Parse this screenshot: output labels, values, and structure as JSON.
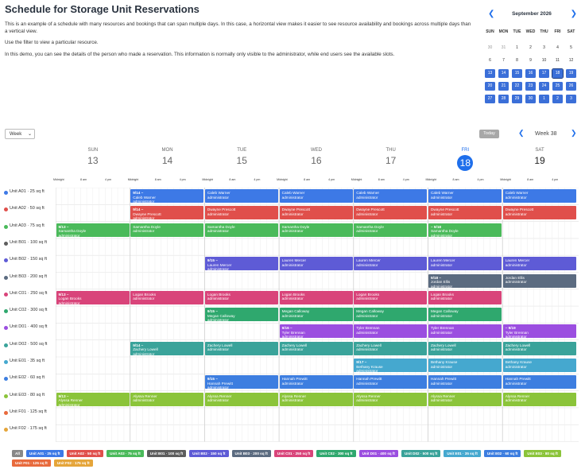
{
  "page": {
    "title": "Schedule for Storage Unit Reservations",
    "desc1": "This is an example of a schedule with many resources and bookings that can span multiple days. In this case, a horizontal view makes it easier to see resource availability and bookings across multiple days than a vertical view.",
    "desc2": "Use the filter to view a particular resource.",
    "desc3": "In this demo, you can see the details of the person who made a reservation. This information is normally only visible to the administrator, while end users see the available slots."
  },
  "mini_calendar": {
    "title": "September 2026",
    "dow": [
      "SUN",
      "MON",
      "TUE",
      "WED",
      "THU",
      "FRI",
      "SAT"
    ],
    "weeks": [
      [
        {
          "d": "30",
          "t": "other"
        },
        {
          "d": "31",
          "t": "other"
        },
        {
          "d": "1",
          "t": ""
        },
        {
          "d": "2",
          "t": ""
        },
        {
          "d": "3",
          "t": ""
        },
        {
          "d": "4",
          "t": ""
        },
        {
          "d": "5",
          "t": ""
        }
      ],
      [
        {
          "d": "6",
          "t": ""
        },
        {
          "d": "7",
          "t": ""
        },
        {
          "d": "8",
          "t": ""
        },
        {
          "d": "9",
          "t": ""
        },
        {
          "d": "10",
          "t": ""
        },
        {
          "d": "11",
          "t": ""
        },
        {
          "d": "12",
          "t": ""
        }
      ],
      [
        {
          "d": "13",
          "t": "sel"
        },
        {
          "d": "14",
          "t": "sel"
        },
        {
          "d": "15",
          "t": "sel"
        },
        {
          "d": "16",
          "t": "sel"
        },
        {
          "d": "17",
          "t": "sel"
        },
        {
          "d": "18",
          "t": "sel today"
        },
        {
          "d": "19",
          "t": "sel"
        }
      ],
      [
        {
          "d": "20",
          "t": "sel"
        },
        {
          "d": "21",
          "t": "sel"
        },
        {
          "d": "22",
          "t": "sel"
        },
        {
          "d": "23",
          "t": "sel"
        },
        {
          "d": "24",
          "t": "sel"
        },
        {
          "d": "25",
          "t": "sel"
        },
        {
          "d": "26",
          "t": "sel"
        }
      ],
      [
        {
          "d": "27",
          "t": "sel"
        },
        {
          "d": "28",
          "t": "sel"
        },
        {
          "d": "29",
          "t": "sel"
        },
        {
          "d": "30",
          "t": "sel"
        },
        {
          "d": "1",
          "t": "sel"
        },
        {
          "d": "2",
          "t": "sel"
        },
        {
          "d": "3",
          "t": "sel"
        }
      ]
    ]
  },
  "toolbar": {
    "view": "Week",
    "today": "Today",
    "week_label": "Week 38"
  },
  "days": [
    {
      "name": "SUN",
      "num": "13"
    },
    {
      "name": "MON",
      "num": "14"
    },
    {
      "name": "TUE",
      "num": "15"
    },
    {
      "name": "WED",
      "num": "16"
    },
    {
      "name": "THU",
      "num": "17"
    },
    {
      "name": "FRI",
      "num": "18"
    },
    {
      "name": "SAT",
      "num": "19"
    }
  ],
  "hour_labels": [
    "Midnight",
    "8 am",
    "4 pm"
  ],
  "resources": [
    {
      "name": "Unit A01 · 25 sq ft",
      "color": "#3d79e6"
    },
    {
      "name": "Unit A02 · 50 sq ft",
      "color": "#e04f4b"
    },
    {
      "name": "Unit A03 · 75 sq ft",
      "color": "#4aba5a"
    },
    {
      "name": "Unit B01 · 100 sq ft",
      "color": "#5d5d5d"
    },
    {
      "name": "Unit B02 · 150 sq ft",
      "color": "#5e5bd6"
    },
    {
      "name": "Unit B03 · 200 sq ft",
      "color": "#5b6b80"
    },
    {
      "name": "Unit C01 · 250 sq ft",
      "color": "#d9447a"
    },
    {
      "name": "Unit C02 · 300 sq ft",
      "color": "#2fa86e"
    },
    {
      "name": "Unit D01 · 400 sq ft",
      "color": "#9b4ee0"
    },
    {
      "name": "Unit D02 · 500 sq ft",
      "color": "#3aa39a"
    },
    {
      "name": "Unit E01 · 35 sq ft",
      "color": "#45a8cf"
    },
    {
      "name": "Unit E02 · 60 sq ft",
      "color": "#3d7ee0"
    },
    {
      "name": "Unit E03 · 80 sq ft",
      "color": "#8bc43a"
    },
    {
      "name": "Unit F01 · 125 sq ft",
      "color": "#e86a3c"
    },
    {
      "name": "Unit F02 · 175 sq ft",
      "color": "#e5a53a"
    }
  ],
  "reservations": [
    {
      "row": 0,
      "start": 1.0,
      "end": 7.0,
      "segments": [
        {
          "title": "9/14 –",
          "name": "Caleb Warner",
          "role": "administrator"
        },
        {
          "title": "",
          "name": "Caleb Warner",
          "role": "administrator"
        },
        {
          "title": "",
          "name": "Caleb Warner",
          "role": "administrator"
        },
        {
          "title": "",
          "name": "Caleb Warner",
          "role": "administrator"
        },
        {
          "title": "",
          "name": "Caleb Warner",
          "role": "administrator"
        },
        {
          "title": "",
          "name": "Caleb Warner",
          "role": "administrator"
        }
      ]
    },
    {
      "row": 1,
      "start": 1.0,
      "end": 7.0,
      "segments": [
        {
          "title": "9/14 –",
          "name": "Dwayne Prescott",
          "role": "administrator"
        },
        {
          "title": "",
          "name": "Dwayne Prescott",
          "role": "administrator"
        },
        {
          "title": "",
          "name": "Dwayne Prescott",
          "role": "administrator"
        },
        {
          "title": "",
          "name": "Dwayne Prescott",
          "role": "administrator"
        },
        {
          "title": "",
          "name": "Dwayne Prescott",
          "role": "administrator"
        },
        {
          "title": "",
          "name": "Dwayne Prescott",
          "role": "administrator"
        }
      ]
    },
    {
      "row": 2,
      "start": 0.0,
      "end": 6.0,
      "segments": [
        {
          "title": "9/13 –",
          "name": "Samantha Doyle",
          "role": "administrator"
        },
        {
          "title": "",
          "name": "Samantha Doyle",
          "role": "administrator"
        },
        {
          "title": "",
          "name": "Samantha Doyle",
          "role": "administrator"
        },
        {
          "title": "",
          "name": "Samantha Doyle",
          "role": "administrator"
        },
        {
          "title": "",
          "name": "Samantha Doyle",
          "role": "administrator"
        },
        {
          "title": "– 9/18",
          "name": "Samantha Doyle",
          "role": "administrator"
        }
      ]
    },
    {
      "row": 4,
      "start": 2.0,
      "end": 7.0,
      "segments": [
        {
          "title": "9/15 –",
          "name": "Lauren Mercer",
          "role": "administrator"
        },
        {
          "title": "",
          "name": "Lauren Mercer",
          "role": "administrator"
        },
        {
          "title": "",
          "name": "Lauren Mercer",
          "role": "administrator"
        },
        {
          "title": "",
          "name": "Lauren Mercer",
          "role": "administrator"
        },
        {
          "title": "",
          "name": "Lauren Mercer",
          "role": "administrator"
        }
      ]
    },
    {
      "row": 5,
      "start": 5.0,
      "end": 7.0,
      "segments": [
        {
          "title": "9/18 –",
          "name": "Jordan Ellis",
          "role": "administrator"
        },
        {
          "title": "",
          "name": "Jordan Ellis",
          "role": "administrator"
        }
      ]
    },
    {
      "row": 6,
      "start": 0.0,
      "end": 6.0,
      "segments": [
        {
          "title": "9/13 –",
          "name": "Logan Brooks",
          "role": "administrator"
        },
        {
          "title": "",
          "name": "Logan Brooks",
          "role": "administrator"
        },
        {
          "title": "",
          "name": "Logan Brooks",
          "role": "administrator"
        },
        {
          "title": "",
          "name": "Logan Brooks",
          "role": "administrator"
        },
        {
          "title": "",
          "name": "Logan Brooks",
          "role": "administrator"
        },
        {
          "title": "",
          "name": "Logan Brooks",
          "role": "administrator"
        }
      ]
    },
    {
      "row": 7,
      "start": 2.0,
      "end": 6.0,
      "segments": [
        {
          "title": "9/15 –",
          "name": "Megan Calloway",
          "role": "administrator"
        },
        {
          "title": "",
          "name": "Megan Calloway",
          "role": "administrator"
        },
        {
          "title": "",
          "name": "Megan Calloway",
          "role": "administrator"
        },
        {
          "title": "",
          "name": "Megan Calloway",
          "role": "administrator"
        }
      ]
    },
    {
      "row": 8,
      "start": 3.0,
      "end": 7.0,
      "segments": [
        {
          "title": "9/16 –",
          "name": "Tyler Brennan",
          "role": "administrator"
        },
        {
          "title": "",
          "name": "Tyler Brennan",
          "role": "administrator"
        },
        {
          "title": "",
          "name": "Tyler Brennan",
          "role": "administrator"
        },
        {
          "title": "– 9/19",
          "name": "Tyler Brennan",
          "role": "administrator"
        }
      ]
    },
    {
      "row": 9,
      "start": 1.0,
      "end": 7.0,
      "segments": [
        {
          "title": "9/14 –",
          "name": "Zachery Lowell",
          "role": "administrator"
        },
        {
          "title": "",
          "name": "Zachery Lowell",
          "role": "administrator"
        },
        {
          "title": "",
          "name": "Zachery Lowell",
          "role": "administrator"
        },
        {
          "title": "",
          "name": "Zachery Lowell",
          "role": "administrator"
        },
        {
          "title": "",
          "name": "Zachery Lowell",
          "role": "administrator"
        },
        {
          "title": "",
          "name": "Zachery Lowell",
          "role": "administrator"
        }
      ]
    },
    {
      "row": 10,
      "start": 4.0,
      "end": 7.0,
      "segments": [
        {
          "title": "9/17 –",
          "name": "Bethany Krause",
          "role": "administrator"
        },
        {
          "title": "",
          "name": "Bethany Krause",
          "role": "administrator"
        },
        {
          "title": "",
          "name": "Bethany Krause",
          "role": "administrator"
        }
      ]
    },
    {
      "row": 11,
      "start": 2.0,
      "end": 7.0,
      "segments": [
        {
          "title": "9/15 –",
          "name": "Hannah Prewitt",
          "role": "administrator"
        },
        {
          "title": "",
          "name": "Hannah Prewitt",
          "role": "administrator"
        },
        {
          "title": "",
          "name": "Hannah Prewitt",
          "role": "administrator"
        },
        {
          "title": "",
          "name": "Hannah Prewitt",
          "role": "administrator"
        },
        {
          "title": "",
          "name": "Hannah Prewitt",
          "role": "administrator"
        }
      ]
    },
    {
      "row": 12,
      "start": 0.0,
      "end": 7.0,
      "segments": [
        {
          "title": "9/13 –",
          "name": "Alyssa Renner",
          "role": "administrator"
        },
        {
          "title": "",
          "name": "Alyssa Renner",
          "role": "administrator"
        },
        {
          "title": "",
          "name": "Alyssa Renner",
          "role": "administrator"
        },
        {
          "title": "",
          "name": "Alyssa Renner",
          "role": "administrator"
        },
        {
          "title": "",
          "name": "Alyssa Renner",
          "role": "administrator"
        },
        {
          "title": "",
          "name": "Alyssa Renner",
          "role": "administrator"
        },
        {
          "title": "",
          "name": "Alyssa Renner",
          "role": "administrator"
        }
      ]
    }
  ],
  "legend": [
    {
      "label": "All",
      "color": "#888888"
    },
    {
      "label": "Unit A01 · 25 sq ft",
      "color": "#3d79e6"
    },
    {
      "label": "Unit A02 · 50 sq ft",
      "color": "#e04f4b"
    },
    {
      "label": "Unit A03 · 75 sq ft",
      "color": "#4aba5a"
    },
    {
      "label": "Unit B01 · 100 sq ft",
      "color": "#5d5d5d"
    },
    {
      "label": "Unit B02 · 150 sq ft",
      "color": "#5e5bd6"
    },
    {
      "label": "Unit B03 · 200 sq ft",
      "color": "#5b6b80"
    },
    {
      "label": "Unit C01 · 250 sq ft",
      "color": "#d9447a"
    },
    {
      "label": "Unit C02 · 300 sq ft",
      "color": "#2fa86e"
    },
    {
      "label": "Unit D01 · 400 sq ft",
      "color": "#9b4ee0"
    },
    {
      "label": "Unit D02 · 500 sq ft",
      "color": "#3aa39a"
    },
    {
      "label": "Unit E01 · 35 sq ft",
      "color": "#45a8cf"
    },
    {
      "label": "Unit E02 · 60 sq ft",
      "color": "#3d7ee0"
    },
    {
      "label": "Unit E03 · 80 sq ft",
      "color": "#8bc43a"
    },
    {
      "label": "Unit F01 · 125 sq ft",
      "color": "#e86a3c"
    },
    {
      "label": "Unit F02 · 175 sq ft",
      "color": "#e5a53a"
    }
  ]
}
